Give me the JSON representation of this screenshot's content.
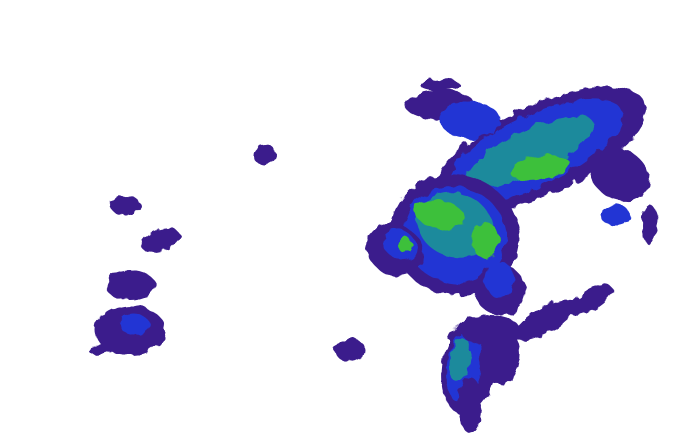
{
  "colors": {
    "background": "#ffffff",
    "level1": "#3b1f8c",
    "level2": "#2436d4",
    "level3": "#1f8a9c",
    "level4": "#3cc03a"
  }
}
